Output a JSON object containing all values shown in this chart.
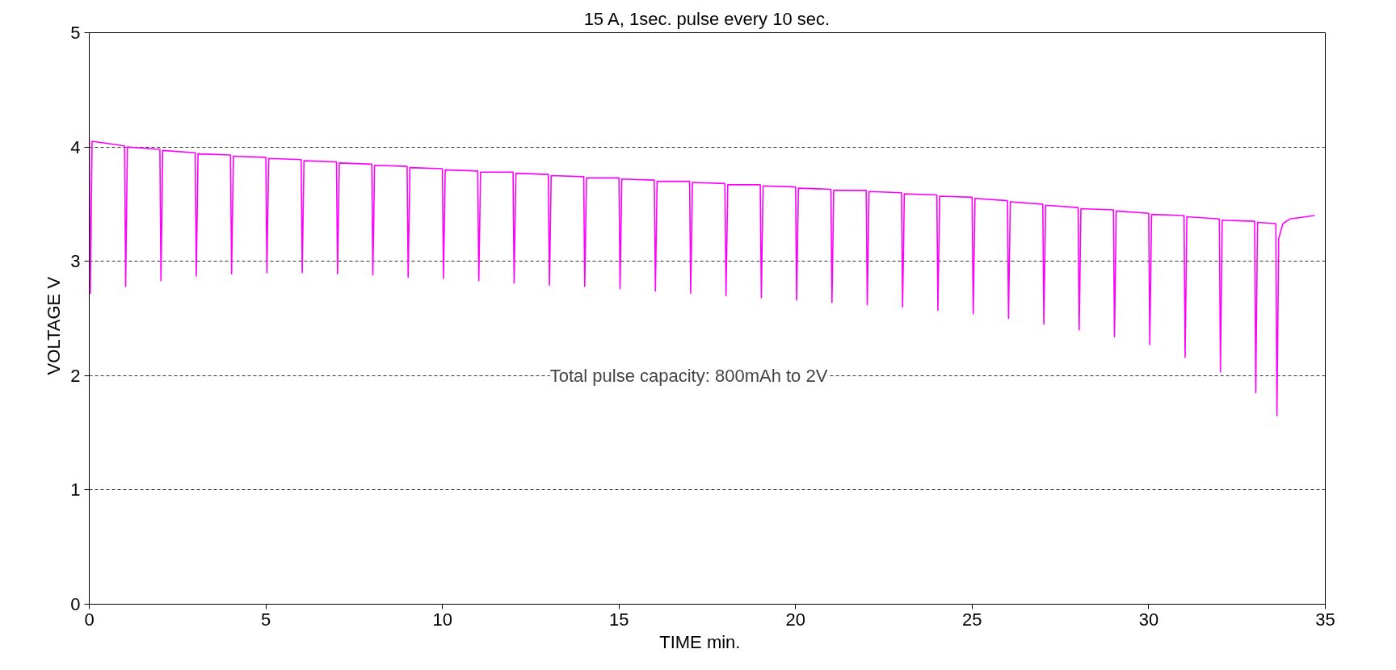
{
  "chart_data": {
    "type": "line",
    "title": "15 A, 1sec. pulse every 10 sec.",
    "xlabel": "TIME    min.",
    "ylabel": "VOLTAGE    V",
    "annotations": [
      "Total pulse capacity: 800mAh to 2V"
    ],
    "xlim": [
      0,
      35
    ],
    "xticks": [
      0,
      5,
      10,
      15,
      20,
      25,
      30,
      35
    ],
    "ylim": [
      0,
      5
    ],
    "yticks": [
      0,
      1,
      2,
      3,
      4,
      5
    ],
    "grid": "y",
    "marker": "none",
    "line_style": "solid",
    "series": [
      {
        "color": "#ff00ff",
        "x": [
          0,
          0.03,
          0.08,
          1,
          1.03,
          1.08,
          2,
          2.03,
          2.08,
          3,
          3.03,
          3.08,
          4,
          4.03,
          4.08,
          5,
          5.03,
          5.08,
          6,
          6.03,
          6.08,
          7,
          7.03,
          7.08,
          8,
          8.03,
          8.08,
          9,
          9.03,
          9.08,
          10,
          10.03,
          10.08,
          11,
          11.03,
          11.08,
          12,
          12.03,
          12.08,
          13,
          13.03,
          13.08,
          14,
          14.03,
          14.08,
          15,
          15.03,
          15.08,
          16,
          16.03,
          16.08,
          17,
          17.03,
          17.08,
          18,
          18.03,
          18.08,
          19,
          19.03,
          19.08,
          20,
          20.03,
          20.08,
          21,
          21.03,
          21.08,
          22,
          22.03,
          22.08,
          23,
          23.03,
          23.08,
          24,
          24.03,
          24.08,
          25,
          25.03,
          25.08,
          26,
          26.03,
          26.08,
          27,
          27.03,
          27.08,
          28,
          28.03,
          28.08,
          29,
          29.03,
          29.08,
          30,
          30.03,
          30.08,
          31,
          31.03,
          31.08,
          32,
          32.03,
          32.08,
          33,
          33.03,
          33.08,
          33.6,
          33.63,
          33.68,
          33.8,
          34,
          34.7
        ],
        "values": [
          4.07,
          2.72,
          4.05,
          4.01,
          2.78,
          4.0,
          3.98,
          2.83,
          3.97,
          3.95,
          2.87,
          3.94,
          3.93,
          2.89,
          3.92,
          3.91,
          2.9,
          3.9,
          3.89,
          2.9,
          3.88,
          3.87,
          2.89,
          3.86,
          3.85,
          2.88,
          3.84,
          3.83,
          2.86,
          3.82,
          3.81,
          2.85,
          3.8,
          3.79,
          2.83,
          3.78,
          3.78,
          2.81,
          3.77,
          3.76,
          2.79,
          3.75,
          3.74,
          2.78,
          3.73,
          3.73,
          2.76,
          3.72,
          3.71,
          2.74,
          3.7,
          3.7,
          2.72,
          3.69,
          3.68,
          2.7,
          3.67,
          3.67,
          2.68,
          3.66,
          3.65,
          2.66,
          3.64,
          3.63,
          2.64,
          3.62,
          3.62,
          2.62,
          3.61,
          3.6,
          2.6,
          3.59,
          3.58,
          2.57,
          3.57,
          3.56,
          2.54,
          3.55,
          3.53,
          2.5,
          3.52,
          3.5,
          2.45,
          3.49,
          3.47,
          2.4,
          3.46,
          3.45,
          2.34,
          3.44,
          3.42,
          2.27,
          3.41,
          3.4,
          2.16,
          3.39,
          3.37,
          2.03,
          3.36,
          3.35,
          1.85,
          3.34,
          3.33,
          1.65,
          3.2,
          3.33,
          3.37,
          3.4
        ]
      }
    ]
  }
}
